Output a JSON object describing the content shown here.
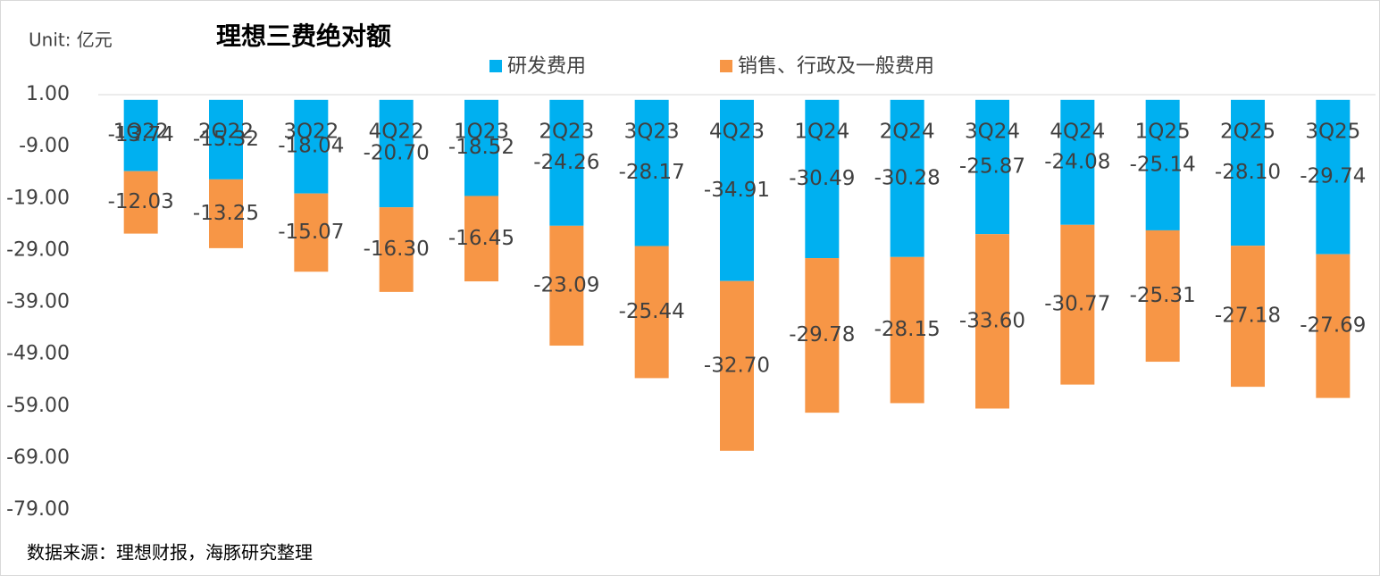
{
  "chart_data": {
    "type": "stacked_bar",
    "title": "理想三费绝对额",
    "unit_label": "Unit: 亿元",
    "source": "数据来源：理想财报，海豚研究整理",
    "categories": [
      "1Q22",
      "2Q22",
      "3Q22",
      "4Q22",
      "1Q23",
      "2Q23",
      "3Q23",
      "4Q23",
      "1Q24",
      "2Q24",
      "3Q24",
      "4Q24",
      "1Q25",
      "2Q25",
      "3Q25"
    ],
    "series": [
      {
        "name": "研发费用",
        "color": "#00b0f0",
        "values": [
          -13.74,
          -15.32,
          -18.04,
          -20.7,
          -18.52,
          -24.26,
          -28.17,
          -34.91,
          -30.49,
          -30.28,
          -25.87,
          -24.08,
          -25.14,
          -28.1,
          -29.74
        ],
        "value_labels": [
          "-13.74",
          "-15.32",
          "-18.04",
          "-20.70",
          "-18.52",
          "-24.26",
          "-28.17",
          "-34.91",
          "-30.49",
          "-30.28",
          "-25.87",
          "-24.08",
          "-25.14",
          "-28.10",
          "-29.74"
        ]
      },
      {
        "name": "销售、行政及一般费用",
        "color": "#f79646",
        "values": [
          -12.03,
          -13.25,
          -15.07,
          -16.3,
          -16.45,
          -23.09,
          -25.44,
          -32.7,
          -29.78,
          -28.15,
          -33.6,
          -30.77,
          -25.31,
          -27.18,
          -27.69
        ],
        "value_labels": [
          "-12.03",
          "-13.25",
          "-15.07",
          "-16.30",
          "-16.45",
          "-23.09",
          "-25.44",
          "-32.70",
          "-29.78",
          "-28.15",
          "-33.60",
          "-30.77",
          "-25.31",
          "-27.18",
          "-27.69"
        ]
      }
    ],
    "ylim": [
      -79,
      1
    ],
    "yticks": [
      {
        "value": 1,
        "label": "1.00"
      },
      {
        "value": -9,
        "label": "-9.00"
      },
      {
        "value": -19,
        "label": "-19.00"
      },
      {
        "value": -29,
        "label": "-29.00"
      },
      {
        "value": -39,
        "label": "-39.00"
      },
      {
        "value": -49,
        "label": "-49.00"
      },
      {
        "value": -59,
        "label": "-59.00"
      },
      {
        "value": -69,
        "label": "-69.00"
      },
      {
        "value": -79,
        "label": "-79.00"
      }
    ]
  }
}
